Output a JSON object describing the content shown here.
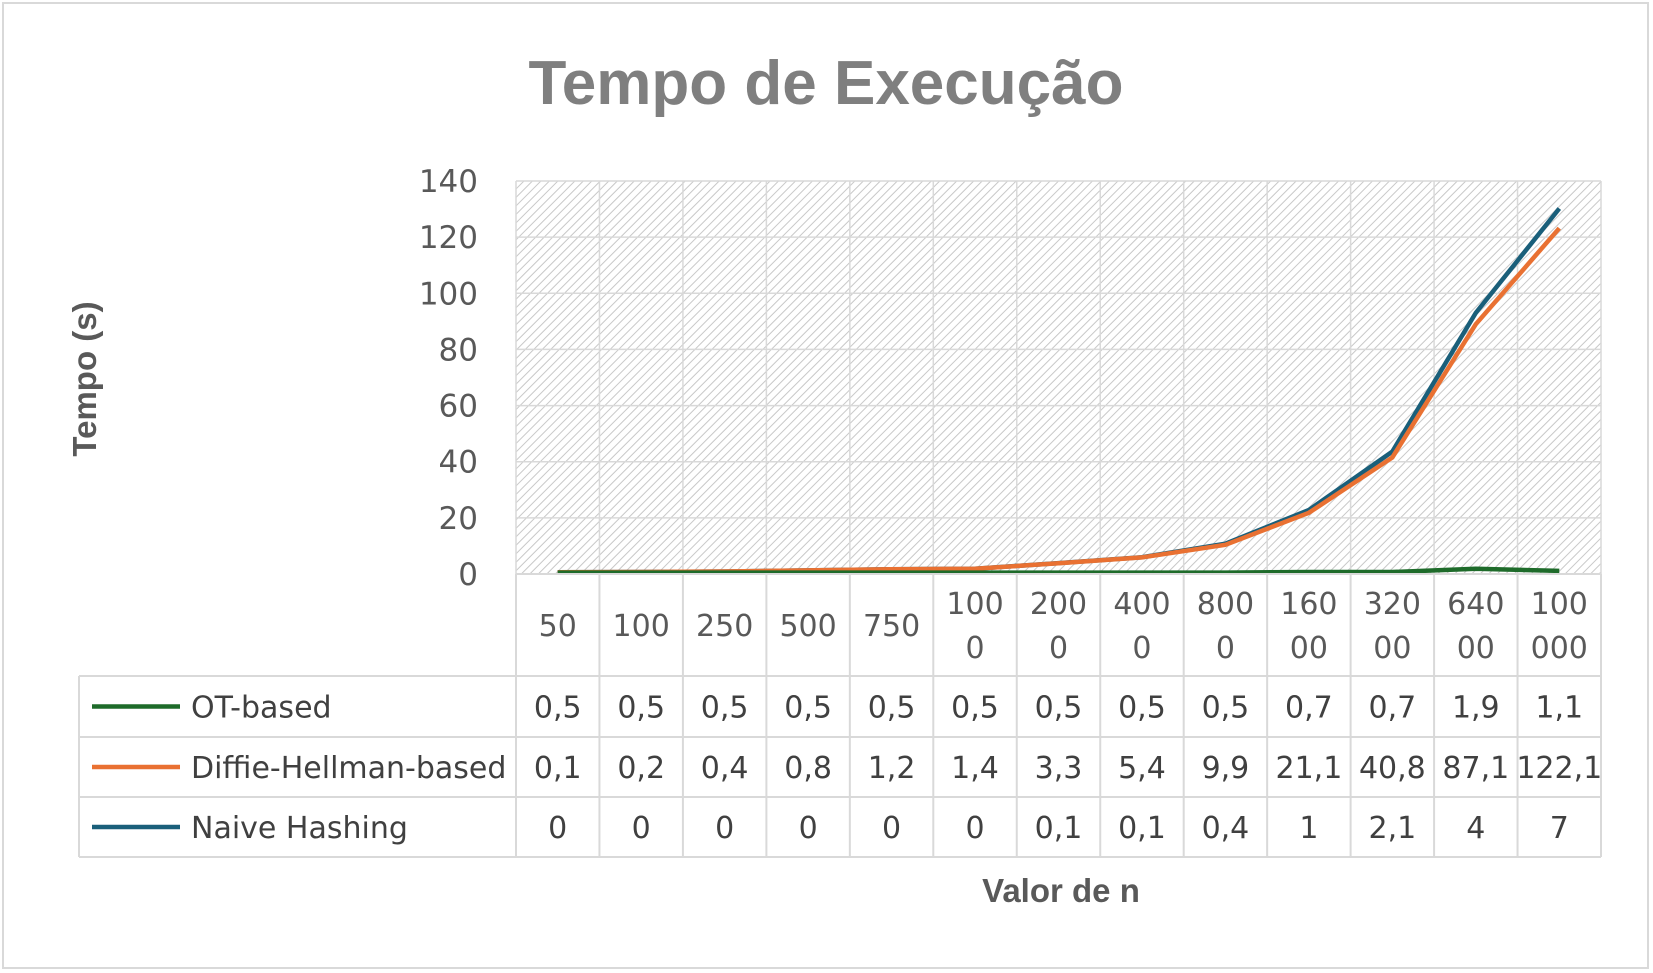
{
  "chart_data": {
    "type": "line",
    "title": "Tempo de Execução",
    "xlabel": "Valor de n",
    "ylabel": "Tempo (s)",
    "ylim": [
      0,
      140
    ],
    "yticks": [
      "0",
      "20",
      "40",
      "60",
      "80",
      "100",
      "120",
      "140"
    ],
    "categories": [
      "50",
      "100",
      "250",
      "500",
      "750",
      "1000",
      "2000",
      "4000",
      "8000",
      "16000",
      "32000",
      "64000",
      "100000"
    ],
    "category_lines": [
      [
        "50"
      ],
      [
        "100"
      ],
      [
        "250"
      ],
      [
        "500"
      ],
      [
        "750"
      ],
      [
        "100",
        "0"
      ],
      [
        "200",
        "0"
      ],
      [
        "400",
        "0"
      ],
      [
        "800",
        "0"
      ],
      [
        "160",
        "00"
      ],
      [
        "320",
        "00"
      ],
      [
        "640",
        "00"
      ],
      [
        "100",
        "000"
      ]
    ],
    "series": [
      {
        "name": "OT-based",
        "color": "#1e6b2a",
        "labels": [
          "0,5",
          "0,5",
          "0,5",
          "0,5",
          "0,5",
          "0,5",
          "0,5",
          "0,5",
          "0,5",
          "0,7",
          "0,7",
          "1,9",
          "1,1"
        ]
      },
      {
        "name": "Diffie-Hellman-based",
        "color": "#e97132",
        "labels": [
          "0,1",
          "0,2",
          "0,4",
          "0,8",
          "1,2",
          "1,4",
          "3,3",
          "5,4",
          "9,9",
          "21,1",
          "40,8",
          "87,1",
          "122,1"
        ]
      },
      {
        "name": "Naive Hashing",
        "color": "#1a5f7a",
        "labels": [
          "0",
          "0",
          "0",
          "0",
          "0",
          "0",
          "0,1",
          "0,1",
          "0,4",
          "1",
          "2,1",
          "4",
          "7"
        ]
      }
    ],
    "stacked": true,
    "data_table": true,
    "plot_background": "diagonal-hatch",
    "grid": true
  }
}
